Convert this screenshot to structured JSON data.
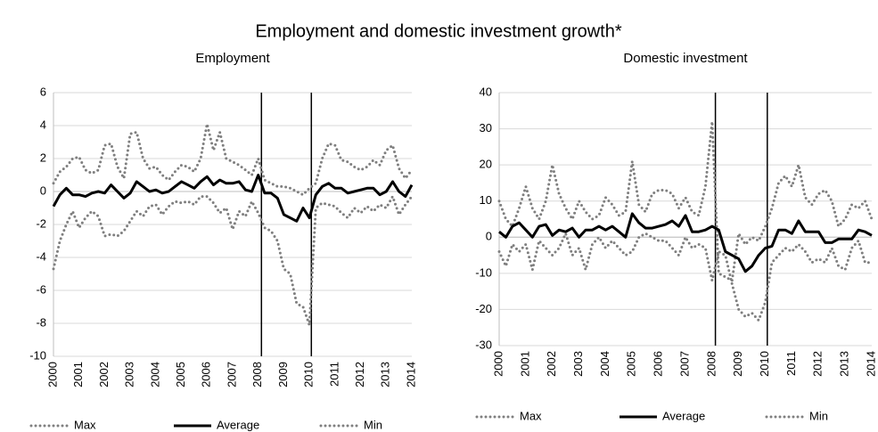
{
  "title": "Employment and domestic investment growth*",
  "chart_data": [
    {
      "type": "line",
      "title": "Employment",
      "categories": [
        "2000",
        null,
        null,
        null,
        "2001",
        null,
        null,
        null,
        "2002",
        null,
        null,
        null,
        "2003",
        null,
        null,
        null,
        "2004",
        null,
        null,
        null,
        "2005",
        null,
        null,
        null,
        "2006",
        null,
        null,
        null,
        "2007",
        null,
        null,
        null,
        "2008",
        null,
        null,
        null,
        "2009",
        null,
        null,
        null,
        "2010",
        null,
        null,
        null,
        "2011",
        null,
        null,
        null,
        "2012",
        null,
        null,
        null,
        "2013",
        null,
        null,
        null,
        "2014"
      ],
      "series": [
        {
          "name": "Max",
          "color": "#7f7f7f",
          "style": "dotted",
          "values": [
            0.5,
            1.2,
            1.5,
            2.0,
            2.1,
            1.3,
            1.1,
            1.3,
            2.8,
            2.9,
            1.5,
            0.8,
            3.5,
            3.6,
            2.0,
            1.4,
            1.5,
            1.0,
            0.7,
            1.2,
            1.6,
            1.5,
            1.2,
            2.0,
            4.1,
            2.5,
            3.6,
            2.0,
            1.8,
            1.6,
            1.3,
            1.0,
            2.0,
            0.7,
            0.5,
            0.3,
            0.3,
            0.2,
            0.0,
            -0.2,
            0.2,
            0.5,
            2.0,
            2.9,
            2.8,
            1.9,
            1.8,
            1.5,
            1.3,
            1.5,
            1.9,
            1.6,
            2.5,
            2.8,
            1.4,
            0.8,
            1.3
          ]
        },
        {
          "name": "Average",
          "color": "#000000",
          "style": "solid",
          "values": [
            -0.9,
            -0.2,
            0.2,
            -0.2,
            -0.2,
            -0.3,
            -0.1,
            0.0,
            -0.1,
            0.4,
            0.0,
            -0.4,
            -0.1,
            0.6,
            0.3,
            0.0,
            0.1,
            -0.1,
            0.0,
            0.3,
            0.6,
            0.4,
            0.2,
            0.6,
            0.9,
            0.4,
            0.7,
            0.5,
            0.5,
            0.6,
            0.1,
            0.0,
            1.0,
            -0.1,
            -0.1,
            -0.4,
            -1.4,
            -1.6,
            -1.8,
            -1.0,
            -1.6,
            -0.2,
            0.3,
            0.5,
            0.2,
            0.2,
            -0.1,
            0.0,
            0.1,
            0.2,
            0.2,
            -0.2,
            0.0,
            0.6,
            0.0,
            -0.3,
            0.4
          ]
        },
        {
          "name": "Min",
          "color": "#7f7f7f",
          "style": "dotted",
          "values": [
            -4.7,
            -3.0,
            -2.0,
            -1.2,
            -2.2,
            -1.6,
            -1.2,
            -1.5,
            -2.7,
            -2.6,
            -2.7,
            -2.4,
            -1.8,
            -1.2,
            -1.5,
            -0.9,
            -0.8,
            -1.4,
            -0.9,
            -0.6,
            -0.7,
            -0.6,
            -0.8,
            -0.3,
            -0.3,
            -0.7,
            -1.3,
            -1.0,
            -2.3,
            -1.2,
            -1.5,
            -0.6,
            -1.3,
            -2.2,
            -2.4,
            -3.0,
            -4.7,
            -5.0,
            -6.8,
            -7.0,
            -8.1,
            -1.0,
            -0.7,
            -0.8,
            -0.9,
            -1.3,
            -1.6,
            -1.0,
            -1.3,
            -0.9,
            -1.2,
            -0.8,
            -1.0,
            -0.3,
            -1.4,
            -0.8,
            -0.3
          ]
        }
      ],
      "vlines": [
        32.5,
        40.3
      ],
      "ylim": [
        -10,
        6
      ],
      "yticks": [
        -10,
        -8,
        -6,
        -4,
        -2,
        0,
        2,
        4,
        6
      ],
      "grid": true
    },
    {
      "type": "line",
      "title": "Domestic investment",
      "categories": [
        "2000",
        null,
        null,
        null,
        "2001",
        null,
        null,
        null,
        "2002",
        null,
        null,
        null,
        "2003",
        null,
        null,
        null,
        "2004",
        null,
        null,
        null,
        "2005",
        null,
        null,
        null,
        "2006",
        null,
        null,
        null,
        "2007",
        null,
        null,
        null,
        "2008",
        null,
        null,
        null,
        "2009",
        null,
        null,
        null,
        "2010",
        null,
        null,
        null,
        "2011",
        null,
        null,
        null,
        "2012",
        null,
        null,
        null,
        "2013",
        null,
        null,
        null,
        "2014"
      ],
      "series": [
        {
          "name": "Max",
          "color": "#7f7f7f",
          "style": "dotted",
          "values": [
            10,
            5,
            3,
            8,
            14,
            8,
            5,
            10,
            20,
            12,
            8,
            5,
            10,
            7,
            5,
            6,
            11,
            9,
            6,
            7,
            21,
            9,
            7,
            12,
            13,
            13,
            12,
            8,
            11,
            7,
            6,
            14,
            32,
            -10,
            -11,
            -12,
            1,
            -2,
            0,
            -1,
            3,
            8,
            15,
            17,
            14,
            20,
            11,
            9,
            12,
            13,
            10,
            3,
            5,
            9,
            8,
            10,
            5
          ]
        },
        {
          "name": "Average",
          "color": "#000000",
          "style": "solid",
          "values": [
            1.5,
            0,
            3,
            4,
            2,
            0,
            3,
            3.5,
            0.5,
            2,
            1.5,
            2.5,
            0,
            2,
            2,
            3,
            2,
            3,
            1.5,
            0,
            6.5,
            4,
            2.5,
            2.5,
            3,
            3.5,
            4.5,
            3,
            6,
            1.5,
            1.5,
            2,
            3,
            2,
            -4,
            -5,
            -6,
            -9.5,
            -8,
            -5,
            -3,
            -2.5,
            2,
            2,
            1,
            4.5,
            1.5,
            1.5,
            1.5,
            -1.5,
            -1.5,
            -0.5,
            -0.5,
            -0.5,
            2,
            1.5,
            0.5
          ]
        },
        {
          "name": "Min",
          "color": "#7f7f7f",
          "style": "dotted",
          "values": [
            -4,
            -8,
            -2,
            -4,
            -2,
            -9,
            -1,
            -3,
            -5,
            -3,
            1,
            -5,
            -3,
            -9,
            -2,
            0,
            -3,
            -1,
            -3,
            -5,
            -4,
            0,
            1,
            0,
            -1,
            -1,
            -3,
            -5,
            0,
            -3,
            -2,
            -3,
            -12,
            -4,
            -5,
            -13,
            -20,
            -22,
            -21,
            -23,
            -18,
            -7,
            -5,
            -3,
            -4,
            -2,
            -4,
            -7,
            -6,
            -7,
            -3,
            -8,
            -9,
            -3,
            -1,
            -7,
            -7
          ]
        }
      ],
      "vlines": [
        32.5,
        40.3
      ],
      "ylim": [
        -30,
        40
      ],
      "yticks": [
        -30,
        -20,
        -10,
        0,
        10,
        20,
        30,
        40
      ],
      "grid": true
    }
  ]
}
